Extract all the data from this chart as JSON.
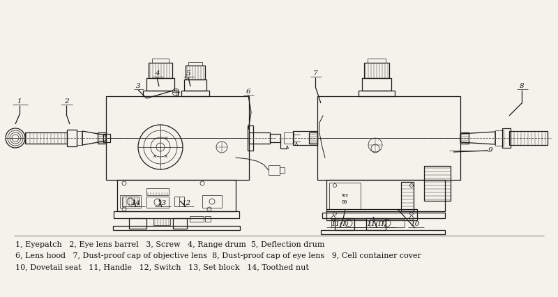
{
  "bg_color": "#f0ede6",
  "drawing_bg": "#ffffff",
  "line_color": "#1a1a1a",
  "text_color": "#111111",
  "dash_color": "#555555",
  "legend_line1": "1, Eyepatch   2, Eye lens barrel   3, Screw   4, Range drum  5, Deflection drum",
  "legend_line2": "6, Lens hood   7, Dust-proof cap of objective lens  8, Dust-proof cap of eye lens   9, Cell container cover",
  "legend_line3": "10, Dovetail seat   11, Handle   12, Switch   13, Set block   14, Toothed nut",
  "legend_fontsize": 8.0,
  "label_fontsize": 7.5,
  "lw_main": 0.9,
  "lw_thin": 0.5,
  "lw_detail": 0.35
}
